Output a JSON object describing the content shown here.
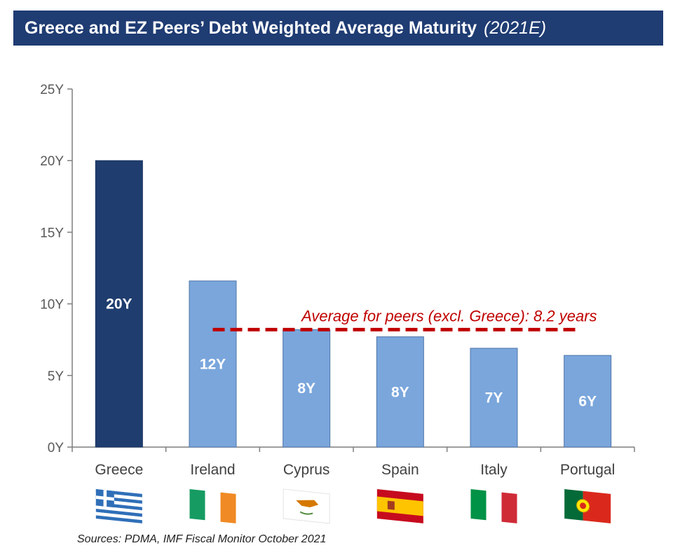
{
  "title": "Greece and EZ Peers’ Debt Weighted Average Maturity",
  "subtitle": "(2021E)",
  "source": "Sources: PDMA, IMF Fiscal Monitor October 2021",
  "colors": {
    "title_bg": "#1f3c73",
    "greece_bar": "#1f3d6e",
    "peer_bar": "#7aa6dc",
    "average_line": "#c00000",
    "axis": "#7f7f7f"
  },
  "chart_data": {
    "type": "bar",
    "categories": [
      "Greece",
      "Ireland",
      "Cyprus",
      "Spain",
      "Italy",
      "Portugal"
    ],
    "values": [
      20,
      11.6,
      8.2,
      7.7,
      6.9,
      6.4
    ],
    "data_labels": [
      "20Y",
      "12Y",
      "8Y",
      "8Y",
      "7Y",
      "6Y"
    ],
    "yticks": [
      0,
      5,
      10,
      15,
      20,
      25
    ],
    "ytick_labels": [
      "0Y",
      "5Y",
      "10Y",
      "15Y",
      "20Y",
      "25Y"
    ],
    "ylim": [
      0,
      25
    ],
    "xlabel": "",
    "ylabel": "",
    "grid": false,
    "legend": "none",
    "annotation": {
      "text": "Average for peers (excl. Greece): 8.2 years",
      "value": 8.2,
      "from_category": "Ireland",
      "to_category": "Portugal"
    },
    "flags": [
      "greece-flag-icon",
      "ireland-flag-icon",
      "cyprus-flag-icon",
      "spain-flag-icon",
      "italy-flag-icon",
      "portugal-flag-icon"
    ]
  }
}
